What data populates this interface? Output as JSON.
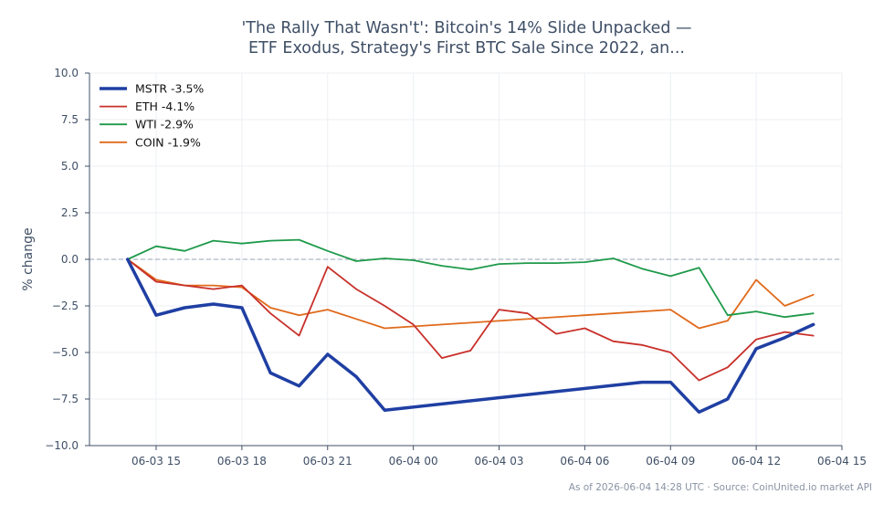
{
  "title_lines": [
    "'The Rally That Wasn't': Bitcoin's 14% Slide Unpacked —",
    "ETF Exodus, Strategy's First BTC Sale Since 2022, an..."
  ],
  "footer": "As of 2026-06-04 14:28 UTC · Source: CoinUnited.io market API",
  "chart_data": {
    "type": "line",
    "title": "'The Rally That Wasn't': Bitcoin's 14% Slide Unpacked — ETF Exodus, Strategy's First BTC Sale Since 2022, an...",
    "xlabel": "",
    "ylabel": "% change",
    "ylim": [
      -10,
      10
    ],
    "yticks": [
      10.0,
      7.5,
      5.0,
      2.5,
      0.0,
      -2.5,
      -5.0,
      -7.5,
      -10.0
    ],
    "ytick_labels": [
      "10.0",
      "7.5",
      "5.0",
      "2.5",
      "0.0",
      "−2.5",
      "−5.0",
      "−7.5",
      "−10.0"
    ],
    "xlim": [
      "06-03 12:40",
      "06-04 15:00"
    ],
    "xticks": [
      "06-03 15:00",
      "06-03 18:00",
      "06-03 21:00",
      "06-04 00:00",
      "06-04 03:00",
      "06-04 06:00",
      "06-04 09:00",
      "06-04 12:00",
      "06-04 15:00"
    ],
    "xtick_labels": [
      "06-03 15",
      "06-03 18",
      "06-03 21",
      "06-04 00",
      "06-04 03",
      "06-04 06",
      "06-04 09",
      "06-04 12",
      "06-04 15"
    ],
    "grid": true,
    "reference_line": 0,
    "legend_position": "top-left",
    "x": [
      "06-03 14:00",
      "06-03 15:00",
      "06-03 16:00",
      "06-03 17:00",
      "06-03 18:00",
      "06-03 19:00",
      "06-03 20:00",
      "06-03 21:00",
      "06-03 22:00",
      "06-03 23:00",
      "06-04 00:00",
      "06-04 01:00",
      "06-04 02:00",
      "06-04 03:00",
      "06-04 04:00",
      "06-04 05:00",
      "06-04 06:00",
      "06-04 07:00",
      "06-04 08:00",
      "06-04 09:00",
      "06-04 10:00",
      "06-04 11:00",
      "06-04 12:00",
      "06-04 13:00",
      "06-04 14:00"
    ],
    "series": [
      {
        "name": "MSTR -3.5%",
        "color": "#1f3fa3",
        "width": 3.5,
        "x": [
          "06-03 14:00",
          "06-03 15:00",
          "06-03 16:00",
          "06-03 17:00",
          "06-03 18:00",
          "06-03 19:00",
          "06-03 20:00",
          "06-03 21:00",
          "06-03 22:00",
          "06-03 23:00",
          "06-04 08:00",
          "06-04 09:00",
          "06-04 10:00",
          "06-04 11:00",
          "06-04 12:00",
          "06-04 13:00",
          "06-04 14:00"
        ],
        "values": [
          0.0,
          -3.0,
          -2.6,
          -2.4,
          -2.6,
          -6.1,
          -6.8,
          -5.1,
          -6.3,
          -8.1,
          -6.6,
          -6.6,
          -8.2,
          -7.5,
          -4.8,
          -4.2,
          -3.5
        ]
      },
      {
        "name": "ETH -4.1%",
        "color": "#c8302a",
        "width": 1.8,
        "values": [
          0.0,
          -1.2,
          -1.4,
          -1.6,
          -1.4,
          -2.9,
          -4.1,
          -0.4,
          -1.6,
          -2.5,
          -3.5,
          -5.3,
          -4.9,
          -2.7,
          -2.9,
          -4.0,
          -3.7,
          -4.4,
          -4.6,
          -5.0,
          -6.5,
          -5.8,
          -4.3,
          -3.9,
          -4.1
        ]
      },
      {
        "name": "WTI -2.9%",
        "color": "#1e9a4a",
        "width": 1.8,
        "values": [
          0.0,
          0.7,
          0.45,
          1.0,
          0.85,
          1.0,
          1.05,
          0.45,
          -0.1,
          0.05,
          -0.05,
          -0.35,
          -0.55,
          -0.25,
          -0.2,
          -0.2,
          -0.15,
          0.05,
          -0.5,
          -0.9,
          -0.45,
          -3.0,
          -2.8,
          -3.1,
          -2.9
        ]
      },
      {
        "name": "COIN -1.9%",
        "color": "#e06a1b",
        "width": 1.8,
        "x": [
          "06-03 14:00",
          "06-03 15:00",
          "06-03 16:00",
          "06-03 17:00",
          "06-03 18:00",
          "06-03 19:00",
          "06-03 20:00",
          "06-03 21:00",
          "06-03 22:00",
          "06-03 23:00",
          "06-04 09:00",
          "06-04 10:00",
          "06-04 11:00",
          "06-04 12:00",
          "06-04 13:00",
          "06-04 14:00"
        ],
        "values": [
          0.0,
          -1.1,
          -1.4,
          -1.4,
          -1.5,
          -2.6,
          -3.0,
          -2.7,
          -3.2,
          -3.7,
          -2.7,
          -3.7,
          -3.3,
          -1.1,
          -2.5,
          -1.9
        ]
      }
    ]
  }
}
